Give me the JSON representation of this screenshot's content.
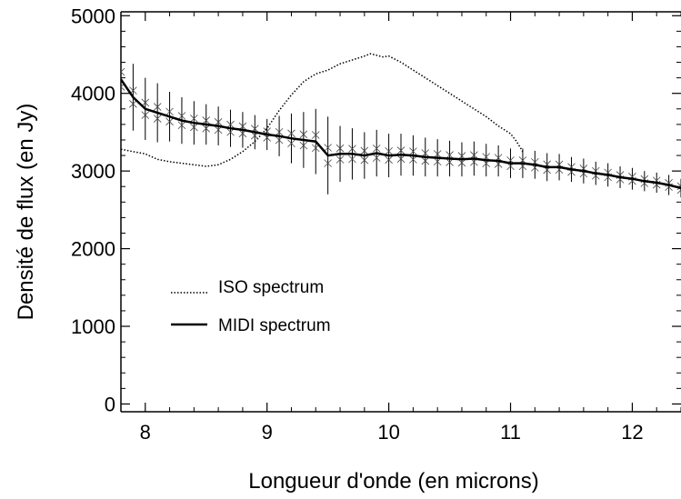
{
  "chart_data": {
    "type": "line",
    "title": "",
    "xlabel": "Longueur d'onde (en microns)",
    "ylabel": "Densité de flux (en Jy)",
    "xlim": [
      7.8,
      12.4
    ],
    "ylim": [
      -100,
      5050
    ],
    "x_ticks": [
      8,
      9,
      10,
      11,
      12
    ],
    "y_ticks": [
      0,
      1000,
      2000,
      3000,
      4000,
      5000
    ],
    "x_tick_labels": [
      "8",
      "9",
      "10",
      "11",
      "12"
    ],
    "y_tick_labels": [
      "0",
      "1000",
      "2000",
      "3000",
      "4000",
      "5000"
    ],
    "legend_position": "middle-left",
    "series": [
      {
        "name": "ISO spectrum",
        "style": "dotted",
        "x": [
          7.8,
          7.9,
          8.0,
          8.1,
          8.2,
          8.3,
          8.4,
          8.5,
          8.6,
          8.7,
          8.8,
          8.9,
          9.0,
          9.1,
          9.2,
          9.3,
          9.4,
          9.5,
          9.6,
          9.7,
          9.8,
          9.85,
          9.9,
          9.95,
          10.0,
          10.05,
          10.1,
          10.2,
          10.3,
          10.4,
          10.5,
          10.6,
          10.7,
          10.8,
          10.9,
          11.0,
          11.05,
          11.1
        ],
        "y": [
          3280,
          3250,
          3220,
          3150,
          3120,
          3100,
          3080,
          3060,
          3080,
          3150,
          3250,
          3380,
          3550,
          3780,
          3980,
          4150,
          4250,
          4300,
          4380,
          4430,
          4480,
          4510,
          4490,
          4470,
          4480,
          4440,
          4400,
          4300,
          4200,
          4100,
          4000,
          3900,
          3800,
          3700,
          3580,
          3480,
          3380,
          3250
        ]
      },
      {
        "name": "MIDI spectrum",
        "style": "solid",
        "x": [
          7.8,
          7.9,
          8.0,
          8.1,
          8.2,
          8.3,
          8.4,
          8.5,
          8.6,
          8.7,
          8.8,
          8.9,
          9.0,
          9.1,
          9.2,
          9.3,
          9.4,
          9.5,
          9.6,
          9.7,
          9.8,
          9.9,
          10.0,
          10.1,
          10.2,
          10.3,
          10.4,
          10.5,
          10.6,
          10.7,
          10.8,
          10.9,
          11.0,
          11.1,
          11.2,
          11.3,
          11.4,
          11.5,
          11.6,
          11.7,
          11.8,
          11.9,
          12.0,
          12.1,
          12.2,
          12.3,
          12.4
        ],
        "y": [
          4180,
          3950,
          3800,
          3750,
          3700,
          3650,
          3620,
          3600,
          3580,
          3550,
          3530,
          3500,
          3470,
          3450,
          3420,
          3400,
          3380,
          3200,
          3220,
          3220,
          3200,
          3230,
          3200,
          3210,
          3200,
          3180,
          3170,
          3160,
          3150,
          3160,
          3140,
          3130,
          3100,
          3100,
          3080,
          3050,
          3050,
          3020,
          3000,
          2970,
          2950,
          2920,
          2900,
          2870,
          2850,
          2820,
          2780
        ],
        "errors": [
          480,
          430,
          400,
          380,
          320,
          300,
          280,
          260,
          250,
          240,
          230,
          220,
          200,
          260,
          320,
          360,
          420,
          500,
          360,
          330,
          300,
          300,
          280,
          270,
          260,
          250,
          240,
          230,
          220,
          220,
          210,
          200,
          190,
          190,
          180,
          180,
          170,
          160,
          160,
          150,
          150,
          140,
          140,
          130,
          130,
          130,
          120
        ]
      }
    ]
  }
}
